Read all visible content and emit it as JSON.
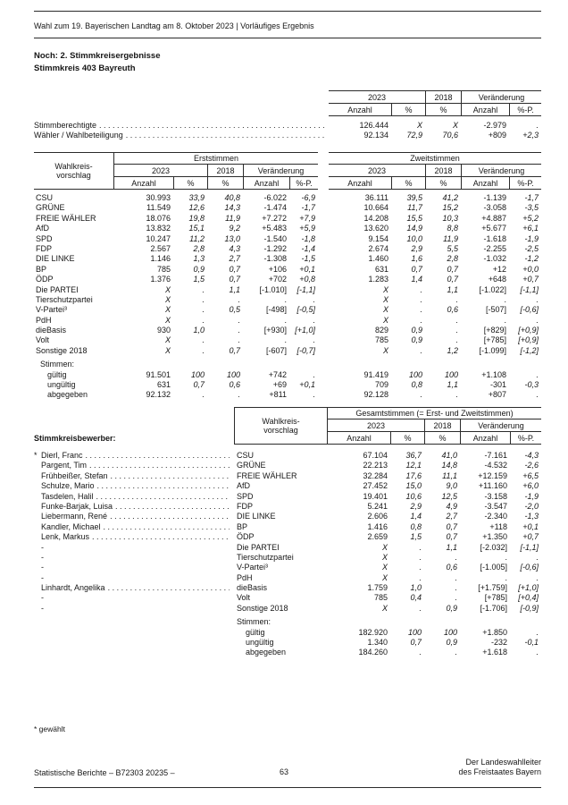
{
  "page_header": "Wahl zum 19. Bayerischen Landtag am 8. Oktober 2023 | Vorläufiges Ergebnis",
  "title": {
    "line1": "Noch: 2. Stimmkreisergebnisse",
    "line2": "Stimmkreis 403 Bayreuth"
  },
  "col": {
    "wkv": "Wahlkreis-vorschlag",
    "y2023": "2023",
    "y2018": "2018",
    "veraenderung": "Veränderung",
    "anzahl": "Anzahl",
    "pct": "%",
    "pctp": "%-P."
  },
  "summary": {
    "rows": [
      {
        "label": "Stimmberechtigte",
        "vals": [
          "126.444",
          "X",
          "X",
          "-2.979",
          "."
        ]
      },
      {
        "label": "Wähler / Wahlbeteiligung",
        "vals": [
          "92.134",
          "72,9",
          "70,6",
          "+809",
          "+2,3"
        ]
      }
    ]
  },
  "votes": {
    "erst_title": "Erststimmen",
    "zweit_title": "Zweitstimmen",
    "rows": [
      {
        "party": "CSU",
        "erst": [
          "30.993",
          "33,9",
          "40,8",
          "-6.022",
          "-6,9"
        ],
        "zweit": [
          "36.111",
          "39,5",
          "41,2",
          "-1.139",
          "-1,7"
        ]
      },
      {
        "party": "GRÜNE",
        "erst": [
          "11.549",
          "12,6",
          "14,3",
          "-1.474",
          "-1,7"
        ],
        "zweit": [
          "10.664",
          "11,7",
          "15,2",
          "-3.058",
          "-3,5"
        ]
      },
      {
        "party": "FREIE WÄHLER",
        "erst": [
          "18.076",
          "19,8",
          "11,9",
          "+7.272",
          "+7,9"
        ],
        "zweit": [
          "14.208",
          "15,5",
          "10,3",
          "+4.887",
          "+5,2"
        ]
      },
      {
        "party": "AfD",
        "erst": [
          "13.832",
          "15,1",
          "9,2",
          "+5.483",
          "+5,9"
        ],
        "zweit": [
          "13.620",
          "14,9",
          "8,8",
          "+5.677",
          "+6,1"
        ]
      },
      {
        "party": "SPD",
        "erst": [
          "10.247",
          "11,2",
          "13,0",
          "-1.540",
          "-1,8"
        ],
        "zweit": [
          "9.154",
          "10,0",
          "11,9",
          "-1.618",
          "-1,9"
        ]
      },
      {
        "party": "FDP",
        "erst": [
          "2.567",
          "2,8",
          "4,3",
          "-1.292",
          "-1,4"
        ],
        "zweit": [
          "2.674",
          "2,9",
          "5,5",
          "-2.255",
          "-2,5"
        ]
      },
      {
        "party": "DIE LINKE",
        "erst": [
          "1.146",
          "1,3",
          "2,7",
          "-1.308",
          "-1,5"
        ],
        "zweit": [
          "1.460",
          "1,6",
          "2,8",
          "-1.032",
          "-1,2"
        ]
      },
      {
        "party": "BP",
        "erst": [
          "785",
          "0,9",
          "0,7",
          "+106",
          "+0,1"
        ],
        "zweit": [
          "631",
          "0,7",
          "0,7",
          "+12",
          "+0,0"
        ]
      },
      {
        "party": "ÖDP",
        "erst": [
          "1.376",
          "1,5",
          "0,7",
          "+702",
          "+0,8"
        ],
        "zweit": [
          "1.283",
          "1,4",
          "0,7",
          "+648",
          "+0,7"
        ]
      },
      {
        "party": "Die PARTEI",
        "erst": [
          "X",
          ".",
          "1,1",
          "[-1.010]",
          "[-1,1]"
        ],
        "zweit": [
          "X",
          ".",
          "1,1",
          "[-1.022]",
          "[-1,1]"
        ]
      },
      {
        "party": "Tierschutzpartei",
        "erst": [
          "X",
          ".",
          ".",
          ".",
          "."
        ],
        "zweit": [
          "X",
          ".",
          ".",
          ".",
          "."
        ]
      },
      {
        "party": "V-Partei³",
        "erst": [
          "X",
          ".",
          "0,5",
          "[-498]",
          "[-0,5]"
        ],
        "zweit": [
          "X",
          ".",
          "0,6",
          "[-507]",
          "[-0,6]"
        ]
      },
      {
        "party": "PdH",
        "erst": [
          "X",
          ".",
          ".",
          ".",
          "."
        ],
        "zweit": [
          "X",
          ".",
          ".",
          ".",
          "."
        ]
      },
      {
        "party": "dieBasis",
        "erst": [
          "930",
          "1,0",
          ".",
          "[+930]",
          "[+1,0]"
        ],
        "zweit": [
          "829",
          "0,9",
          ".",
          "[+829]",
          "[+0,9]"
        ]
      },
      {
        "party": "Volt",
        "erst": [
          "X",
          ".",
          ".",
          ".",
          "."
        ],
        "zweit": [
          "785",
          "0,9",
          ".",
          "[+785]",
          "[+0,9]"
        ]
      },
      {
        "party": "Sonstige 2018",
        "erst": [
          "X",
          ".",
          "0,7",
          "[-607]",
          "[-0,7]"
        ],
        "zweit": [
          "X",
          ".",
          "1,2",
          "[-1.099]",
          "[-1,2]"
        ]
      }
    ],
    "stimmen_label": "Stimmen:",
    "stimmen": [
      {
        "label": "gültig",
        "erst": [
          "91.501",
          "100",
          "100",
          "+742",
          "."
        ],
        "zweit": [
          "91.419",
          "100",
          "100",
          "+1.108",
          "."
        ]
      },
      {
        "label": "ungültig",
        "erst": [
          "631",
          "0,7",
          "0,6",
          "+69",
          "+0,1"
        ],
        "zweit": [
          "709",
          "0,8",
          "1,1",
          "-301",
          "-0,3"
        ]
      },
      {
        "label": "abgegeben",
        "erst": [
          "92.132",
          ".",
          ".",
          "+811",
          "."
        ],
        "zweit": [
          "92.128",
          ".",
          ".",
          "+807",
          "."
        ]
      }
    ]
  },
  "gesamt": {
    "section_label": "Stimmkreisbewerber:",
    "title": "Gesamtstimmen (= Erst- und Zweitstimmen)",
    "rows": [
      {
        "mark": "*",
        "name": "Dierl, Franc",
        "party": "CSU",
        "vals": [
          "67.104",
          "36,7",
          "41,0",
          "-7.161",
          "-4,3"
        ]
      },
      {
        "mark": "",
        "name": "Pargent, Tim",
        "party": "GRÜNE",
        "vals": [
          "22.213",
          "12,1",
          "14,8",
          "-4.532",
          "-2,6"
        ]
      },
      {
        "mark": "",
        "name": "Frühbeißer, Stefan",
        "party": "FREIE WÄHLER",
        "vals": [
          "32.284",
          "17,6",
          "11,1",
          "+12.159",
          "+6,5"
        ]
      },
      {
        "mark": "",
        "name": "Schulze, Mario",
        "party": "AfD",
        "vals": [
          "27.452",
          "15,0",
          "9,0",
          "+11.160",
          "+6,0"
        ]
      },
      {
        "mark": "",
        "name": "Tasdelen, Halil",
        "party": "SPD",
        "vals": [
          "19.401",
          "10,6",
          "12,5",
          "-3.158",
          "-1,9"
        ]
      },
      {
        "mark": "",
        "name": "Funke-Barjak, Luisa",
        "party": "FDP",
        "vals": [
          "5.241",
          "2,9",
          "4,9",
          "-3.547",
          "-2,0"
        ]
      },
      {
        "mark": "",
        "name": "Liebermann, René",
        "party": "DIE LINKE",
        "vals": [
          "2.606",
          "1,4",
          "2,7",
          "-2.340",
          "-1,3"
        ]
      },
      {
        "mark": "",
        "name": "Kandler, Michael",
        "party": "BP",
        "vals": [
          "1.416",
          "0,8",
          "0,7",
          "+118",
          "+0,1"
        ]
      },
      {
        "mark": "",
        "name": "Lenk, Markus",
        "party": "ÖDP",
        "vals": [
          "2.659",
          "1,5",
          "0,7",
          "+1.350",
          "+0,7"
        ]
      },
      {
        "mark": "",
        "name": "-",
        "party": "Die PARTEI",
        "vals": [
          "X",
          ".",
          "1,1",
          "[-2.032]",
          "[-1,1]"
        ]
      },
      {
        "mark": "",
        "name": "-",
        "party": "Tierschutzpartei",
        "vals": [
          "X",
          ".",
          ".",
          ".",
          "."
        ]
      },
      {
        "mark": "",
        "name": "-",
        "party": "V-Partei³",
        "vals": [
          "X",
          ".",
          "0,6",
          "[-1.005]",
          "[-0,6]"
        ]
      },
      {
        "mark": "",
        "name": "-",
        "party": "PdH",
        "vals": [
          "X",
          ".",
          ".",
          ".",
          "."
        ]
      },
      {
        "mark": "",
        "name": "Linhardt, Angelika",
        "party": "dieBasis",
        "vals": [
          "1.759",
          "1,0",
          ".",
          "[+1.759]",
          "[+1,0]"
        ]
      },
      {
        "mark": "",
        "name": "-",
        "party": "Volt",
        "vals": [
          "785",
          "0,4",
          ".",
          "[+785]",
          "[+0,4]"
        ]
      },
      {
        "mark": "",
        "name": "-",
        "party": "Sonstige 2018",
        "vals": [
          "X",
          ".",
          "0,9",
          "[-1.706]",
          "[-0,9]"
        ]
      }
    ],
    "stimmen_label": "Stimmen:",
    "stimmen": [
      {
        "label": "gültig",
        "vals": [
          "182.920",
          "100",
          "100",
          "+1.850",
          "."
        ]
      },
      {
        "label": "ungültig",
        "vals": [
          "1.340",
          "0,7",
          "0,9",
          "-232",
          "-0,1"
        ]
      },
      {
        "label": "abgegeben",
        "vals": [
          "184.260",
          ".",
          ".",
          "+1.618",
          "."
        ]
      }
    ]
  },
  "footnote": "* gewählt",
  "footer": {
    "left": "Statistische Berichte – B72303 20235 –",
    "page_number": "63",
    "right_line1": "Der Landeswahlleiter",
    "right_line2": "des Freistaates Bayern"
  }
}
